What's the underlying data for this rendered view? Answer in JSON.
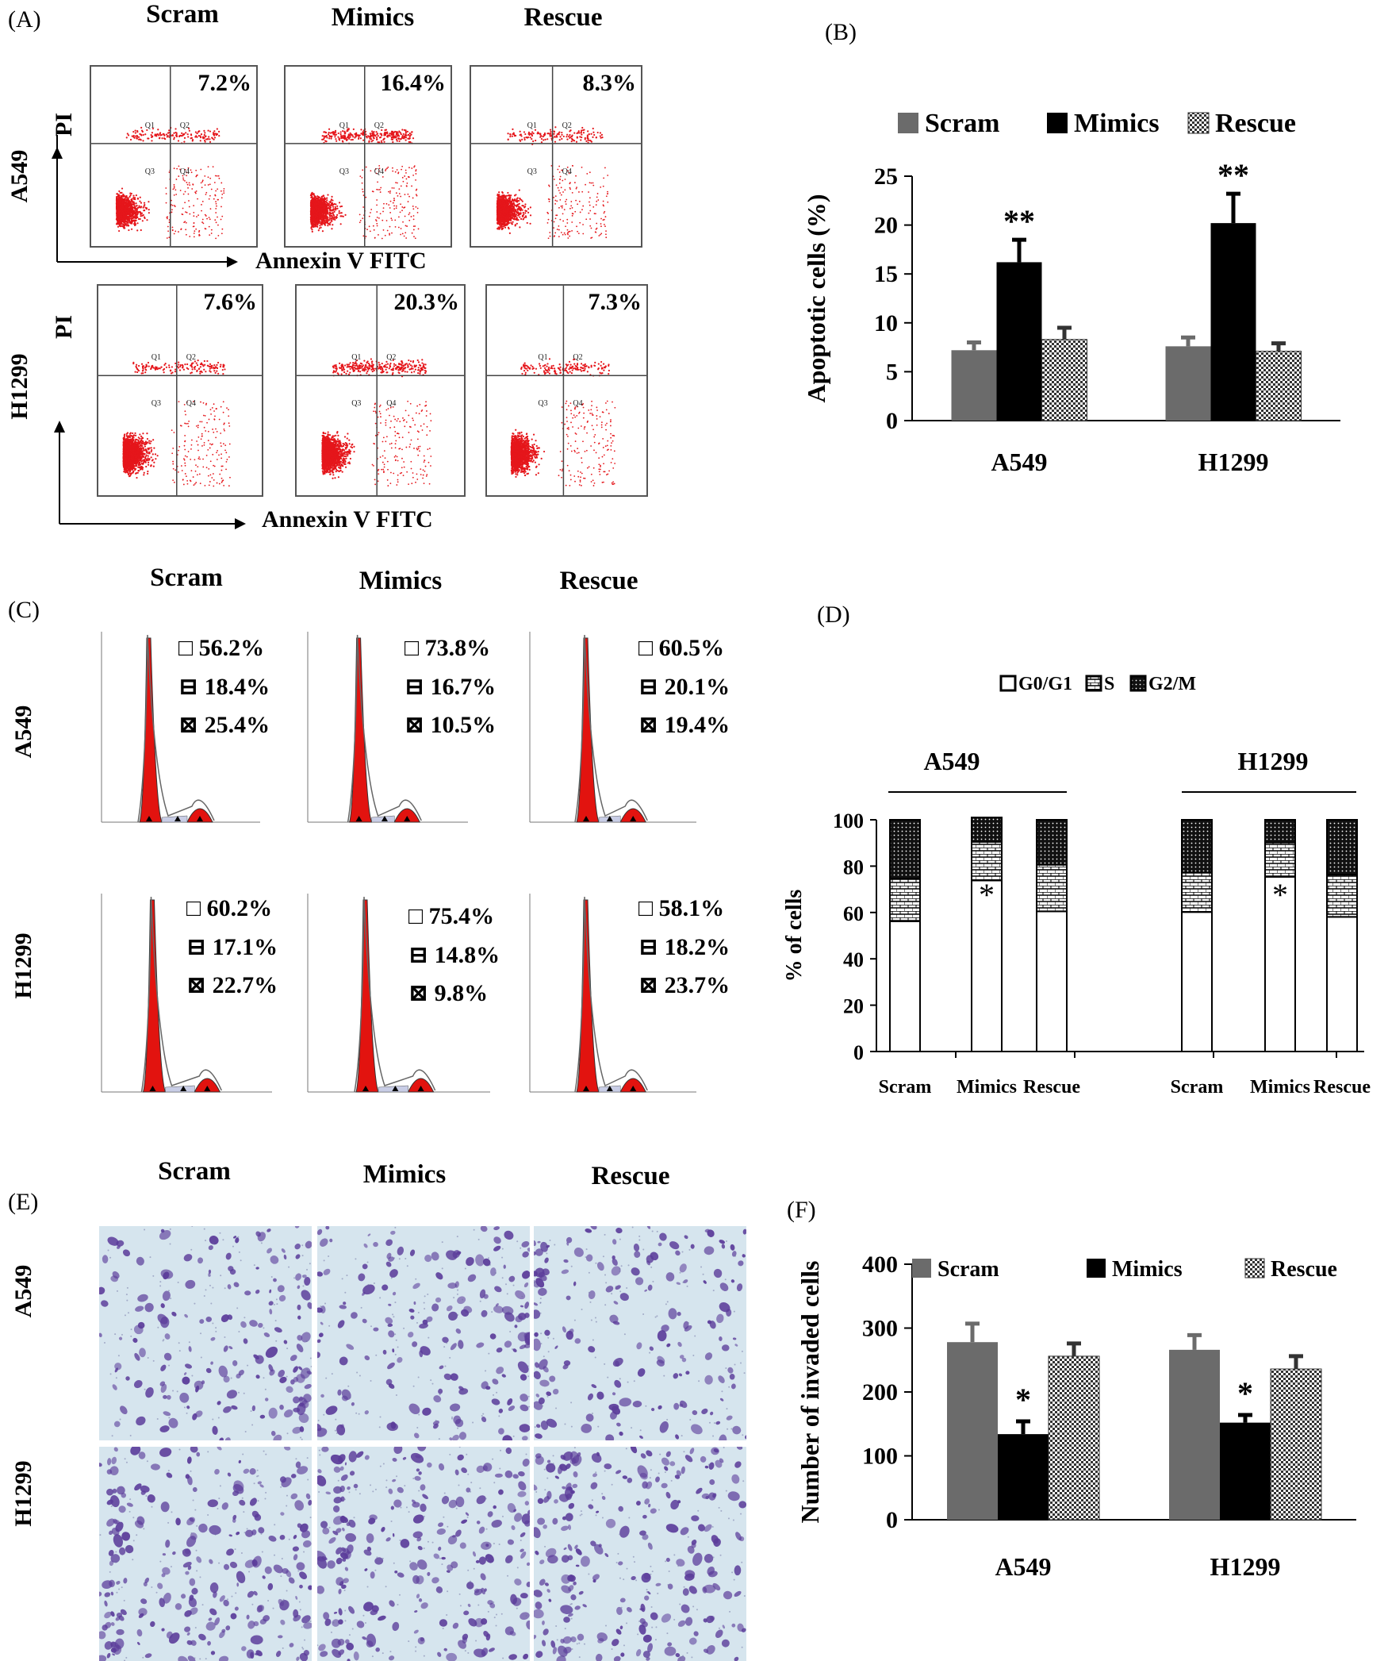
{
  "colors": {
    "scram": "#6b6b6b",
    "mimics": "#000000",
    "rescue": "#bdbdbd",
    "dot": "#e5161b",
    "stain": "#5b3c9a",
    "hist": "#e2130f"
  },
  "panelA": {
    "label": "(A)",
    "columns": [
      "Scram",
      "Mimics",
      "Rescue"
    ],
    "rows": [
      {
        "name": "A549",
        "percents": [
          "7.2%",
          "16.4%",
          "8.3%"
        ]
      },
      {
        "name": "H1299",
        "percents": [
          "7.6%",
          "20.3%",
          "7.3%"
        ]
      }
    ],
    "y_axis": "PI",
    "x_axis": "Annexin V FITC",
    "quadrants": [
      "Q1",
      "Q2",
      "Q3",
      "Q4"
    ]
  },
  "panelC": {
    "label": "(C)",
    "columns": [
      "Scram",
      "Mimics",
      "Rescue"
    ],
    "rows": [
      {
        "name": "A549",
        "values": [
          [
            "56.2%",
            "18.4%",
            "25.4%"
          ],
          [
            "73.8%",
            "16.7%",
            "10.5%"
          ],
          [
            "60.5%",
            "20.1%",
            "19.4%"
          ]
        ]
      },
      {
        "name": "H1299",
        "values": [
          [
            "60.2%",
            "17.1%",
            "22.7%"
          ],
          [
            "75.4%",
            "14.8%",
            "9.8%"
          ],
          [
            "58.1%",
            "18.2%",
            "23.7%"
          ]
        ]
      }
    ]
  },
  "panelE": {
    "label": "(E)",
    "columns": [
      "Scram",
      "Mimics",
      "Rescue"
    ],
    "rows": [
      "A549",
      "H1299"
    ]
  },
  "chart_data": [
    {
      "panel": "(B)",
      "type": "bar",
      "categories": [
        "A549",
        "H1299"
      ],
      "series": [
        {
          "name": "Scram",
          "values": [
            7.2,
            7.6
          ],
          "errors": [
            0.8,
            0.9
          ]
        },
        {
          "name": "Mimics",
          "values": [
            16.2,
            20.2
          ],
          "errors": [
            2.3,
            3.0
          ]
        },
        {
          "name": "Rescue",
          "values": [
            8.3,
            7.1
          ],
          "errors": [
            1.2,
            0.8
          ]
        }
      ],
      "ylabel": "Apoptotic cells (%)",
      "ylim": [
        0,
        25
      ],
      "yticks": [
        "0",
        "5",
        "10",
        "15",
        "20",
        "25"
      ],
      "annotations": [
        "**",
        "**"
      ],
      "legend": "top"
    },
    {
      "panel": "(D)",
      "type": "bar",
      "stacked": true,
      "groups": [
        "A549",
        "H1299"
      ],
      "categories": [
        "Scram",
        "Mimics",
        "Rescue",
        "Scram",
        "Mimics",
        "Rescue"
      ],
      "series": [
        {
          "name": "G0/G1",
          "values": [
            56.2,
            73.8,
            60.5,
            60.2,
            75.4,
            58.1
          ]
        },
        {
          "name": "S",
          "values": [
            18.4,
            16.7,
            20.1,
            17.1,
            14.8,
            18.2
          ]
        },
        {
          "name": "G2/M",
          "values": [
            25.4,
            10.5,
            19.4,
            22.7,
            9.8,
            23.7
          ]
        }
      ],
      "ylabel": "% of cells",
      "ylim": [
        0,
        100
      ],
      "yticks": [
        "0",
        "20",
        "40",
        "60",
        "80",
        "100"
      ],
      "annotations": [
        "*",
        "*"
      ],
      "legend": "top"
    },
    {
      "panel": "(F)",
      "type": "bar",
      "categories": [
        "A549",
        "H1299"
      ],
      "series": [
        {
          "name": "Scram",
          "values": [
            278,
            266
          ],
          "errors": [
            29,
            23
          ]
        },
        {
          "name": "Mimics",
          "values": [
            134,
            152
          ],
          "errors": [
            20,
            12
          ]
        },
        {
          "name": "Rescue",
          "values": [
            256,
            236
          ],
          "errors": [
            20,
            20
          ]
        }
      ],
      "ylabel": "Number of invaded cells",
      "ylim": [
        0,
        400
      ],
      "yticks": [
        "0",
        "100",
        "200",
        "300",
        "400"
      ],
      "annotations": [
        "*",
        "*"
      ],
      "legend": "top"
    }
  ]
}
